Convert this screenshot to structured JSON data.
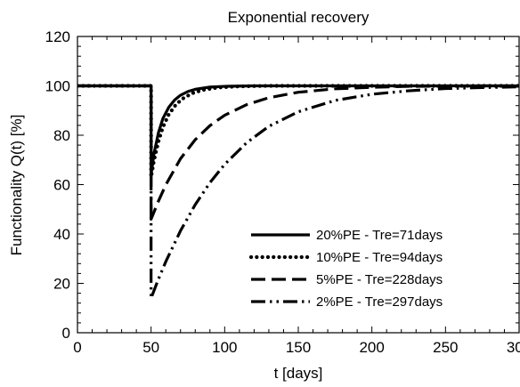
{
  "chart_data": {
    "type": "line",
    "title": "Exponential recovery",
    "xlabel": "t [days]",
    "ylabel": "Functionality Q(t) [%]",
    "xlim": [
      0,
      300
    ],
    "ylim": [
      0,
      120
    ],
    "x_ticks": [
      0,
      50,
      100,
      150,
      200,
      250,
      300
    ],
    "y_ticks": [
      0,
      20,
      40,
      60,
      80,
      100,
      120
    ],
    "grid": false,
    "legend_position": "bottom-right",
    "event_time": 50,
    "series": [
      {
        "name": "20%PE - Tre=71days",
        "line_style": "solid",
        "color": "#000000",
        "points": [
          [
            0,
            100
          ],
          [
            50,
            100
          ],
          [
            50,
            64
          ],
          [
            52,
            72.6
          ],
          [
            55,
            81
          ],
          [
            58,
            86.7
          ],
          [
            62,
            91.3
          ],
          [
            66,
            94.3
          ],
          [
            70,
            96.2
          ],
          [
            75,
            97.7
          ],
          [
            80,
            98.6
          ],
          [
            90,
            99.5
          ],
          [
            100,
            99.8
          ],
          [
            120,
            100
          ],
          [
            150,
            100
          ],
          [
            200,
            100
          ],
          [
            250,
            100
          ],
          [
            300,
            100
          ]
        ]
      },
      {
        "name": "10%PE - Tre=94days",
        "line_style": "dotted",
        "color": "#000000",
        "points": [
          [
            0,
            100
          ],
          [
            50,
            100
          ],
          [
            50,
            63
          ],
          [
            52,
            69.8
          ],
          [
            55,
            77.5
          ],
          [
            58,
            83.2
          ],
          [
            62,
            88.4
          ],
          [
            67,
            92.5
          ],
          [
            72,
            95
          ],
          [
            78,
            97
          ],
          [
            85,
            98.3
          ],
          [
            95,
            99.3
          ],
          [
            110,
            99.8
          ],
          [
            130,
            100
          ],
          [
            160,
            100
          ],
          [
            200,
            100
          ],
          [
            250,
            100
          ],
          [
            300,
            100
          ]
        ]
      },
      {
        "name": "5%PE - Tre=228days",
        "line_style": "dashed",
        "color": "#000000",
        "points": [
          [
            0,
            100
          ],
          [
            50,
            100
          ],
          [
            50,
            46
          ],
          [
            55,
            53.3
          ],
          [
            60,
            59.9
          ],
          [
            70,
            70.5
          ],
          [
            80,
            78.2
          ],
          [
            90,
            83.9
          ],
          [
            100,
            88.1
          ],
          [
            115,
            92.4
          ],
          [
            130,
            95.2
          ],
          [
            150,
            97.4
          ],
          [
            175,
            98.8
          ],
          [
            200,
            99.4
          ],
          [
            225,
            99.8
          ],
          [
            250,
            99.9
          ],
          [
            275,
            100
          ],
          [
            300,
            100
          ]
        ]
      },
      {
        "name": "2%PE - Tre=297days",
        "line_style": "dash-dot-dot",
        "color": "#000000",
        "points": [
          [
            0,
            100
          ],
          [
            50,
            100
          ],
          [
            50,
            14
          ],
          [
            55,
            21.7
          ],
          [
            60,
            28.8
          ],
          [
            70,
            41.3
          ],
          [
            80,
            51.9
          ],
          [
            90,
            60.8
          ],
          [
            100,
            68.2
          ],
          [
            115,
            77
          ],
          [
            130,
            83.6
          ],
          [
            150,
            89.5
          ],
          [
            175,
            94.1
          ],
          [
            200,
            96.6
          ],
          [
            225,
            98
          ],
          [
            250,
            98.9
          ],
          [
            275,
            99.3
          ],
          [
            300,
            99.6
          ]
        ]
      }
    ]
  }
}
